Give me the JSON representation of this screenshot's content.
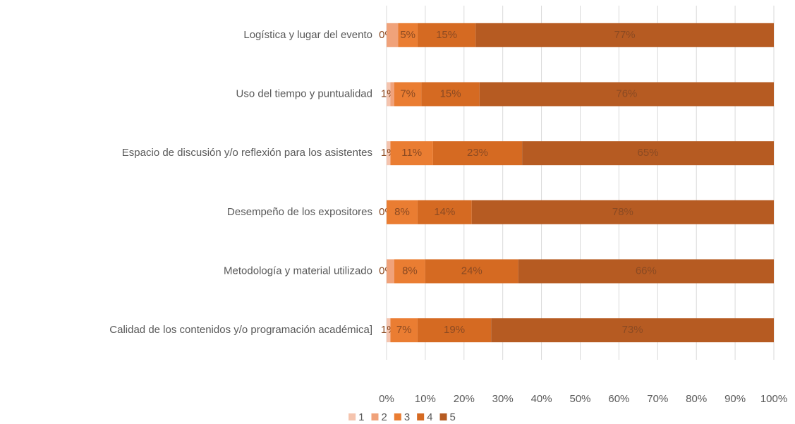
{
  "chart_data": {
    "type": "stacked_bar_horizontal",
    "categories": [
      "Logística y lugar del evento",
      "Uso del tiempo y puntualidad",
      "Espacio de discusión y/o reflexión para los asistentes",
      "Desempeño de los expositores",
      "Metodología y material utilizado",
      "Calidad de los contenidos y/o programación académica]"
    ],
    "series": [
      {
        "name": "1",
        "color": "#f5c4ae",
        "values": [
          0,
          1,
          1,
          0,
          0,
          1
        ],
        "value_labels": [
          "0%",
          "1%",
          "1%",
          "0%",
          "0%",
          "1%"
        ]
      },
      {
        "name": "2",
        "color": "#f0a27a",
        "values": [
          3,
          1,
          0,
          0,
          2,
          0
        ]
      },
      {
        "name": "3",
        "color": "#ea7d32",
        "values": [
          5,
          7,
          11,
          8,
          8,
          7
        ],
        "value_labels": [
          "5%",
          "7%",
          "11%",
          "8%",
          "8%",
          "7%"
        ]
      },
      {
        "name": "4",
        "color": "#d56a22",
        "values": [
          15,
          15,
          23,
          14,
          24,
          19
        ],
        "value_labels": [
          "15%",
          "15%",
          "23%",
          "14%",
          "24%",
          "19%"
        ]
      },
      {
        "name": "5",
        "color": "#b65b22",
        "values": [
          77,
          76,
          65,
          78,
          66,
          73
        ],
        "value_labels": [
          "77%",
          "76%",
          "65%",
          "78%",
          "66%",
          "73%"
        ]
      }
    ],
    "xlim": [
      0,
      100
    ],
    "xticks": [
      {
        "value": 0,
        "label": "0%"
      },
      {
        "value": 10,
        "label": "10%"
      },
      {
        "value": 20,
        "label": "20%"
      },
      {
        "value": 30,
        "label": "30%"
      },
      {
        "value": 40,
        "label": "40%"
      },
      {
        "value": 50,
        "label": "50%"
      },
      {
        "value": 60,
        "label": "60%"
      },
      {
        "value": 70,
        "label": "70%"
      },
      {
        "value": 80,
        "label": "80%"
      },
      {
        "value": 90,
        "label": "90%"
      },
      {
        "value": 100,
        "label": "100%"
      }
    ],
    "grid": true,
    "legend": "bottom"
  }
}
